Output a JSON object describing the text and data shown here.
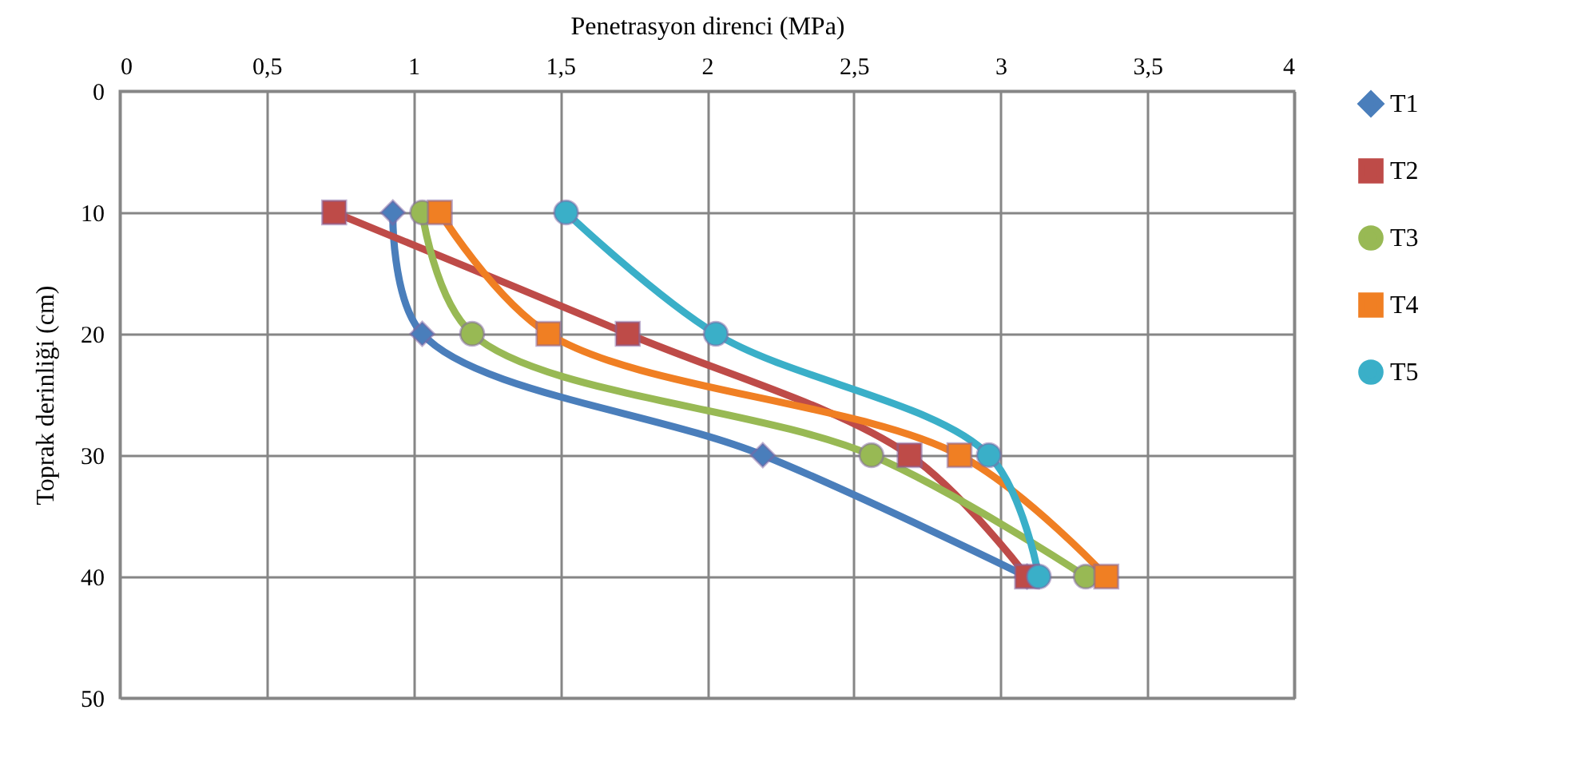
{
  "chart_data": {
    "type": "line",
    "xlabel": "Penetrasyon direnci  (MPa)",
    "ylabel": "Toprak derinliği  (cm)",
    "xlim": [
      0,
      4
    ],
    "xticks": [
      0,
      {
        "value": 0.5,
        "label": "0,5"
      },
      1,
      {
        "value": 1.5,
        "label": "1,5"
      },
      2,
      {
        "value": 2.5,
        "label": "2,5"
      },
      3,
      {
        "value": 3.5,
        "label": "3,5"
      },
      4
    ],
    "ylim": [
      50,
      0
    ],
    "yticks": [
      0,
      10,
      20,
      30,
      40,
      50
    ],
    "grid": true,
    "legend": "right",
    "series": [
      {
        "name": "T1",
        "color": "#4a7ebb",
        "marker": "diamond",
        "x": [
          0.93,
          1.03,
          2.19,
          3.09
        ],
        "values": [
          10,
          20,
          30,
          40
        ]
      },
      {
        "name": "T2",
        "color": "#be4b48",
        "marker": "square",
        "x": [
          0.73,
          1.73,
          2.69,
          3.09
        ],
        "values": [
          10,
          20,
          30,
          40
        ]
      },
      {
        "name": "T3",
        "color": "#98b954",
        "marker": "circle",
        "x": [
          1.03,
          1.2,
          2.56,
          3.29
        ],
        "values": [
          10,
          20,
          30,
          40
        ]
      },
      {
        "name": "T4",
        "color": "#f07f23",
        "marker": "square",
        "x": [
          1.09,
          1.46,
          2.86,
          3.36
        ],
        "values": [
          10,
          20,
          30,
          40
        ]
      },
      {
        "name": "T5",
        "color": "#3aafc8",
        "marker": "circle",
        "x": [
          1.52,
          2.03,
          2.96,
          3.13
        ],
        "values": [
          10,
          20,
          30,
          40
        ]
      }
    ]
  }
}
